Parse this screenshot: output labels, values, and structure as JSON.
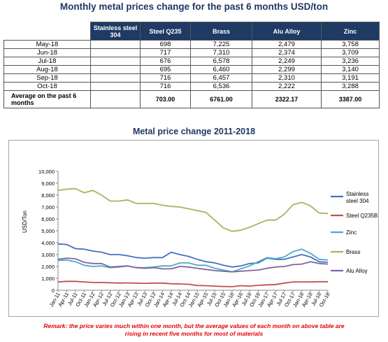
{
  "page_title": "Monthly metal prices change for the past 6 months USD/ton",
  "table": {
    "headers": [
      "",
      "Stainless steel 304",
      "Steel Q235",
      "Brass",
      "Alu Alloy",
      "Zinc"
    ],
    "rows": [
      {
        "month": "May-18",
        "stainless": "",
        "steel": "698",
        "brass": "7,225",
        "alu": "2,479",
        "zinc": "3,758"
      },
      {
        "month": "Jun-18",
        "stainless": "",
        "steel": "717",
        "brass": "7,310",
        "alu": "2,374",
        "zinc": "3,709"
      },
      {
        "month": "Jul-18",
        "stainless": "",
        "steel": "676",
        "brass": "6,578",
        "alu": "2,249",
        "zinc": "3,236"
      },
      {
        "month": "Aug-18",
        "stainless": "",
        "steel": "695",
        "brass": "6,460",
        "alu": "2,299",
        "zinc": "3,140"
      },
      {
        "month": "Sep-18",
        "stainless": "",
        "steel": "716",
        "brass": "6,457",
        "alu": "2,310",
        "zinc": "3,191"
      },
      {
        "month": "Oct-18",
        "stainless": "",
        "steel": "716",
        "brass": "6,536",
        "alu": "2,222",
        "zinc": "3,288"
      }
    ],
    "average": {
      "label": "Average on the past 6 months",
      "stainless": "",
      "steel": "703.00",
      "brass": "6761.00",
      "alu": "2322.17",
      "zinc": "3387.00"
    }
  },
  "chart_title": "Metal price change 2011-2018",
  "remark": "Remark: the price varies much within one month, but the average values of each month on above table are rising in recent five months for most of materials",
  "chart_data": {
    "type": "line",
    "title": "Metal price change 2011-2018",
    "xlabel": "",
    "ylabel": "USD/Ton",
    "ylim": [
      0,
      10000
    ],
    "yticks": [
      "0",
      "1,000",
      "2,000",
      "3,000",
      "4,000",
      "5,000",
      "6,000",
      "7,000",
      "8,000",
      "9,000",
      "10,000"
    ],
    "x": [
      "Jan-11",
      "Apr-11",
      "Jul-11",
      "Oct-11",
      "Jan-12",
      "Apr-12",
      "Jul-12",
      "Oct-12",
      "Jan-13",
      "Apr-13",
      "Jul-13",
      "Oct-13",
      "Jan-14",
      "Apr-14",
      "Jul-14",
      "Oct-14",
      "Jan-15",
      "Apr-15",
      "Jul-15",
      "Oct-15",
      "Jan-16",
      "Apr-16",
      "Jul-16",
      "Oct-16",
      "Jan-17",
      "Apr-17",
      "Jul-17",
      "Oct-17",
      "Jan-18",
      "Apr-18",
      "Jul-18",
      "Oct-18"
    ],
    "grid": false,
    "legend_position": "right",
    "series": [
      {
        "name": "Stainless steel 304",
        "color": "#4472c4",
        "values": [
          3900,
          3850,
          3500,
          3450,
          3300,
          3200,
          3000,
          3000,
          2900,
          2750,
          2700,
          2750,
          2750,
          3200,
          3000,
          2850,
          2600,
          2400,
          2300,
          2100,
          1950,
          2050,
          2250,
          2300,
          2700,
          2600,
          2600,
          2800,
          3000,
          2800,
          2400,
          2350
        ]
      },
      {
        "name": "Steel Q235B",
        "color": "#c0504d",
        "values": [
          700,
          750,
          750,
          700,
          650,
          650,
          630,
          600,
          620,
          600,
          580,
          600,
          600,
          550,
          530,
          500,
          400,
          380,
          350,
          320,
          300,
          380,
          350,
          420,
          450,
          480,
          600,
          700,
          700,
          700,
          720,
          720
        ]
      },
      {
        "name": "Zinc",
        "color": "#4bacc6",
        "values": [
          2500,
          2550,
          2400,
          2100,
          2000,
          2050,
          1900,
          1950,
          2050,
          1900,
          1900,
          1950,
          2050,
          2050,
          2300,
          2300,
          2100,
          2100,
          1850,
          1700,
          1550,
          1800,
          2050,
          2400,
          2750,
          2650,
          2800,
          3250,
          3450,
          3100,
          2600,
          2550
        ]
      },
      {
        "name": "Brass",
        "color": "#9bbb59",
        "values": [
          8400,
          8500,
          8550,
          8200,
          8400,
          8000,
          7500,
          7500,
          7600,
          7300,
          7300,
          7300,
          7150,
          7050,
          7000,
          6850,
          6700,
          6550,
          5900,
          5250,
          4950,
          5050,
          5300,
          5600,
          5900,
          5900,
          6400,
          7200,
          7400,
          7100,
          6500,
          6450
        ]
      },
      {
        "name": "Alu Alloy",
        "color": "#8064a2",
        "values": [
          2600,
          2700,
          2650,
          2350,
          2250,
          2250,
          1950,
          2000,
          2050,
          1900,
          1850,
          1900,
          1800,
          1800,
          2000,
          1950,
          1850,
          1750,
          1650,
          1600,
          1550,
          1600,
          1650,
          1700,
          1850,
          1950,
          2000,
          2150,
          2200,
          2400,
          2250,
          2200
        ]
      }
    ]
  }
}
